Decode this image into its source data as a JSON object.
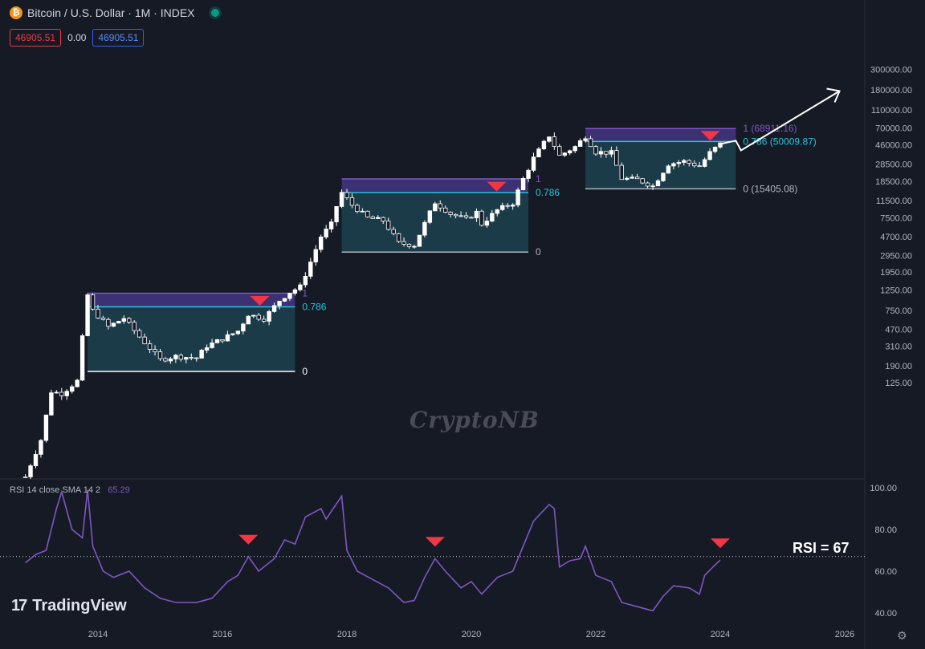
{
  "header": {
    "title": "Bitcoin / U.S. Dollar · 1M · INDEX",
    "coin_icon": "bitcoin-icon",
    "status_dot": "live-market-dot",
    "sell_price": "46905.51",
    "spread": "0.00",
    "buy_price": "46905.51"
  },
  "watermark": "CryptoNB",
  "branding": {
    "logo_icon": "tradingview-logo-icon",
    "name": "TradingView"
  },
  "settings_icon": "gear-icon",
  "rsi_panel": {
    "indicator_name": "RSI",
    "params": "14 close SMA 14 2",
    "value": "65.29",
    "badge": "RSI = 67"
  },
  "colors": {
    "background": "#161a25",
    "up_candle": "#ffffff",
    "fib_top_zone": "#4a3a8c",
    "fib_lower_zone": "#1f4a58",
    "fib_786_line": "#26c6da",
    "rsi_line": "#7e57c2",
    "marker": "#f23645"
  },
  "chart_data": {
    "type": "candlestick",
    "price_axis": {
      "scale": "log",
      "ticks": [
        "300000.00",
        "180000.00",
        "110000.00",
        "70000.00",
        "46000.00",
        "28500.00",
        "18500.00",
        "11500.00",
        "7500.00",
        "4700.00",
        "2950.00",
        "1950.00",
        "1250.00",
        "750.00",
        "470.00",
        "310.00",
        "190.00",
        "125.00"
      ]
    },
    "time_axis": {
      "ticks": [
        "2014",
        "2016",
        "2018",
        "2020",
        "2022",
        "2024",
        "2026"
      ]
    },
    "close_path": [
      [
        "2012-11",
        12
      ],
      [
        "2013-02",
        30
      ],
      [
        "2013-04",
        100
      ],
      [
        "2013-06",
        95
      ],
      [
        "2013-09",
        130
      ],
      [
        "2013-11",
        1100
      ],
      [
        "2013-12",
        750
      ],
      [
        "2014-03",
        500
      ],
      [
        "2014-06",
        620
      ],
      [
        "2014-09",
        390
      ],
      [
        "2015-01",
        220
      ],
      [
        "2015-04",
        240
      ],
      [
        "2015-08",
        230
      ],
      [
        "2015-10",
        310
      ],
      [
        "2016-01",
        370
      ],
      [
        "2016-04",
        450
      ],
      [
        "2016-06",
        680
      ],
      [
        "2016-09",
        610
      ],
      [
        "2016-12",
        960
      ],
      [
        "2017-02",
        1180
      ],
      [
        "2017-04",
        1350
      ],
      [
        "2017-06",
        2500
      ],
      [
        "2017-08",
        4700
      ],
      [
        "2017-10",
        6400
      ],
      [
        "2017-11",
        10000
      ],
      [
        "2017-12",
        14000
      ],
      [
        "2018-02",
        10300
      ],
      [
        "2018-05",
        7500
      ],
      [
        "2018-08",
        7000
      ],
      [
        "2018-11",
        4000
      ],
      [
        "2019-02",
        3800
      ],
      [
        "2019-05",
        8500
      ],
      [
        "2019-06",
        11000
      ],
      [
        "2019-09",
        8300
      ],
      [
        "2019-12",
        7200
      ],
      [
        "2020-02",
        8600
      ],
      [
        "2020-03",
        6400
      ],
      [
        "2020-06",
        9100
      ],
      [
        "2020-09",
        10800
      ],
      [
        "2020-11",
        19700
      ],
      [
        "2021-01",
        33000
      ],
      [
        "2021-04",
        57800
      ],
      [
        "2021-06",
        35000
      ],
      [
        "2021-09",
        43800
      ],
      [
        "2021-11",
        57000
      ],
      [
        "2022-01",
        38500
      ],
      [
        "2022-04",
        37700
      ],
      [
        "2022-06",
        19900
      ],
      [
        "2022-09",
        19400
      ],
      [
        "2022-12",
        16500
      ],
      [
        "2023-03",
        28500
      ],
      [
        "2023-06",
        30500
      ],
      [
        "2023-09",
        27000
      ],
      [
        "2023-11",
        37700
      ],
      [
        "2023-12",
        42300
      ],
      [
        "2024-01",
        46905
      ]
    ],
    "fib_zones": [
      {
        "level_1": "1",
        "level_786": "0.786",
        "level_0": "0",
        "high": 1150,
        "fib786": 820,
        "low": 165,
        "from": "2013-11",
        "to": "2017-03"
      },
      {
        "level_1": "1",
        "level_786": "0.786",
        "level_0": "0",
        "high": 19700,
        "fib786": 14000,
        "low": 3200,
        "from": "2017-12",
        "to": "2020-12"
      },
      {
        "level_1": "1 (68911.16)",
        "level_786": "0.786 (50009.87)",
        "level_0": "0 (15405.08)",
        "high": 68911.16,
        "fib786": 50009.87,
        "low": 15405.08,
        "from": "2021-11",
        "to": "2024-04"
      }
    ],
    "projection": [
      [
        "2024-01",
        46905
      ],
      [
        "2024-04",
        51000
      ],
      [
        "2024-05",
        40000
      ],
      [
        "2025-12",
        175000
      ]
    ],
    "rsi": {
      "axis_ticks": [
        "100.00",
        "80.00",
        "60.00",
        "40.00"
      ],
      "reference_level": 67,
      "values": [
        [
          "2012-11",
          64
        ],
        [
          "2013-01",
          68
        ],
        [
          "2013-03",
          70
        ],
        [
          "2013-05",
          90
        ],
        [
          "2013-06",
          98
        ],
        [
          "2013-08",
          80
        ],
        [
          "2013-10",
          76
        ],
        [
          "2013-11",
          99
        ],
        [
          "2013-12",
          72
        ],
        [
          "2014-02",
          60
        ],
        [
          "2014-04",
          57
        ],
        [
          "2014-07",
          60
        ],
        [
          "2014-10",
          52
        ],
        [
          "2015-01",
          47
        ],
        [
          "2015-04",
          45
        ],
        [
          "2015-08",
          45
        ],
        [
          "2015-11",
          47
        ],
        [
          "2016-02",
          55
        ],
        [
          "2016-04",
          58
        ],
        [
          "2016-06",
          67
        ],
        [
          "2016-08",
          60
        ],
        [
          "2016-11",
          66
        ],
        [
          "2017-01",
          75
        ],
        [
          "2017-03",
          73
        ],
        [
          "2017-05",
          86
        ],
        [
          "2017-08",
          90
        ],
        [
          "2017-09",
          85
        ],
        [
          "2017-12",
          96
        ],
        [
          "2018-01",
          70
        ],
        [
          "2018-03",
          60
        ],
        [
          "2018-06",
          56
        ],
        [
          "2018-09",
          52
        ],
        [
          "2018-12",
          45
        ],
        [
          "2019-02",
          46
        ],
        [
          "2019-04",
          57
        ],
        [
          "2019-06",
          66
        ],
        [
          "2019-08",
          60
        ],
        [
          "2019-11",
          52
        ],
        [
          "2020-01",
          55
        ],
        [
          "2020-03",
          49
        ],
        [
          "2020-06",
          57
        ],
        [
          "2020-09",
          60
        ],
        [
          "2020-11",
          72
        ],
        [
          "2021-01",
          84
        ],
        [
          "2021-04",
          92
        ],
        [
          "2021-05",
          90
        ],
        [
          "2021-06",
          62
        ],
        [
          "2021-08",
          65
        ],
        [
          "2021-10",
          66
        ],
        [
          "2021-11",
          72
        ],
        [
          "2022-01",
          58
        ],
        [
          "2022-04",
          55
        ],
        [
          "2022-06",
          45
        ],
        [
          "2022-09",
          43
        ],
        [
          "2022-12",
          41
        ],
        [
          "2023-02",
          48
        ],
        [
          "2023-04",
          53
        ],
        [
          "2023-07",
          52
        ],
        [
          "2023-09",
          49
        ],
        [
          "2023-10",
          58
        ],
        [
          "2023-12",
          63
        ],
        [
          "2024-01",
          65.29
        ]
      ],
      "markers": [
        "2016-06",
        "2019-06",
        "2024-01"
      ]
    }
  }
}
